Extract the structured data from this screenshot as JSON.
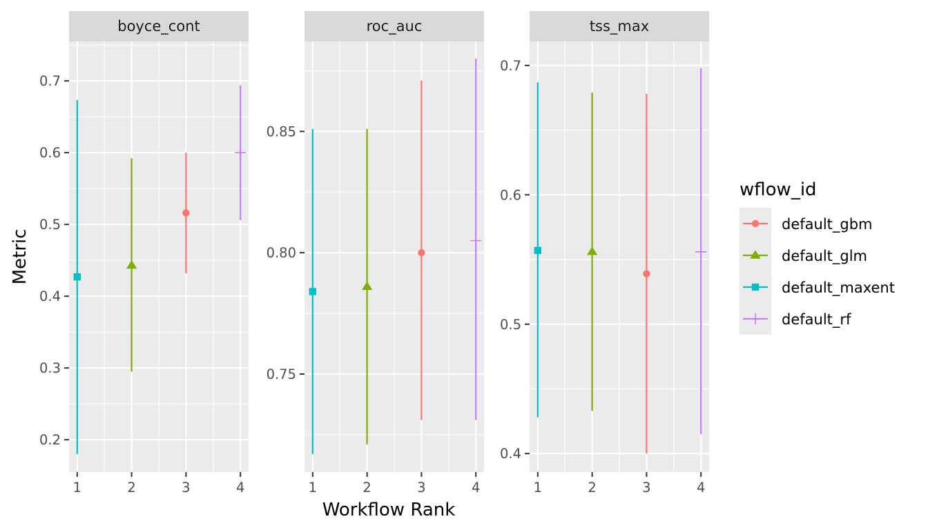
{
  "chart_data": {
    "type": "errorbar",
    "x_axis_title": "Workflow Rank",
    "y_axis_title": "Metric",
    "x_ticks": [
      "1",
      "2",
      "3",
      "4"
    ],
    "legend": {
      "title": "wflow_id",
      "entries": [
        {
          "id": "default_gbm",
          "label": "default_gbm",
          "color": "#F8766D",
          "shape": "circle"
        },
        {
          "id": "default_glm",
          "label": "default_glm",
          "color": "#7CAE00",
          "shape": "triangle"
        },
        {
          "id": "default_maxent",
          "label": "default_maxent",
          "color": "#00BFC4",
          "shape": "square"
        },
        {
          "id": "default_rf",
          "label": "default_rf",
          "color": "#C77CFF",
          "shape": "plus"
        }
      ]
    },
    "panels": [
      {
        "metric": "boyce_cont",
        "ylim": [
          0.155,
          0.755
        ],
        "y_ticks": [
          {
            "value": 0.2,
            "label": "0.2"
          },
          {
            "value": 0.3,
            "label": "0.3"
          },
          {
            "value": 0.4,
            "label": "0.4"
          },
          {
            "value": 0.5,
            "label": "0.5"
          },
          {
            "value": 0.6,
            "label": "0.6"
          },
          {
            "value": 0.7,
            "label": "0.7"
          }
        ],
        "points": [
          {
            "rank": 1,
            "wflow_id": "default_maxent",
            "mean": 0.427,
            "lower": 0.18,
            "upper": 0.673
          },
          {
            "rank": 2,
            "wflow_id": "default_glm",
            "mean": 0.443,
            "lower": 0.295,
            "upper": 0.592
          },
          {
            "rank": 3,
            "wflow_id": "default_gbm",
            "mean": 0.516,
            "lower": 0.432,
            "upper": 0.6
          },
          {
            "rank": 4,
            "wflow_id": "default_rf",
            "mean": 0.6,
            "lower": 0.506,
            "upper": 0.694
          }
        ]
      },
      {
        "metric": "roc_auc",
        "ylim": [
          0.7096,
          0.8871
        ],
        "y_ticks": [
          {
            "value": 0.75,
            "label": "0.75"
          },
          {
            "value": 0.8,
            "label": "0.80"
          },
          {
            "value": 0.85,
            "label": "0.85"
          }
        ],
        "points": [
          {
            "rank": 1,
            "wflow_id": "default_maxent",
            "mean": 0.784,
            "lower": 0.717,
            "upper": 0.851
          },
          {
            "rank": 2,
            "wflow_id": "default_glm",
            "mean": 0.786,
            "lower": 0.721,
            "upper": 0.851
          },
          {
            "rank": 3,
            "wflow_id": "default_gbm",
            "mean": 0.8,
            "lower": 0.731,
            "upper": 0.871
          },
          {
            "rank": 4,
            "wflow_id": "default_rf",
            "mean": 0.805,
            "lower": 0.731,
            "upper": 0.88
          }
        ]
      },
      {
        "metric": "tss_max",
        "ylim": [
          0.3857,
          0.7186
        ],
        "y_ticks": [
          {
            "value": 0.4,
            "label": "0.4"
          },
          {
            "value": 0.5,
            "label": "0.5"
          },
          {
            "value": 0.6,
            "label": "0.6"
          },
          {
            "value": 0.7,
            "label": "0.7"
          }
        ],
        "points": [
          {
            "rank": 1,
            "wflow_id": "default_maxent",
            "mean": 0.557,
            "lower": 0.428,
            "upper": 0.687
          },
          {
            "rank": 2,
            "wflow_id": "default_glm",
            "mean": 0.556,
            "lower": 0.433,
            "upper": 0.679
          },
          {
            "rank": 3,
            "wflow_id": "default_gbm",
            "mean": 0.539,
            "lower": 0.4,
            "upper": 0.678
          },
          {
            "rank": 4,
            "wflow_id": "default_rf",
            "mean": 0.556,
            "lower": 0.415,
            "upper": 0.698
          }
        ]
      }
    ]
  }
}
